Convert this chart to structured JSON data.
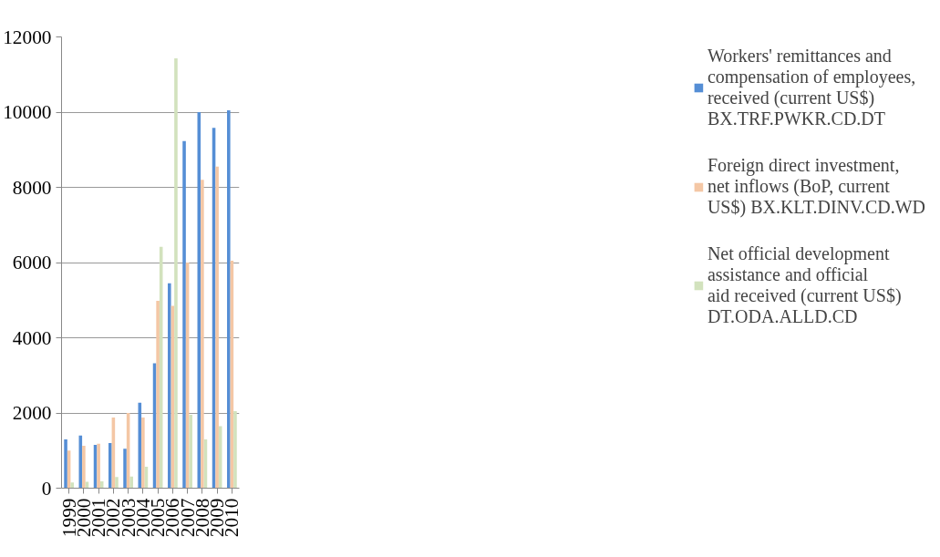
{
  "chart_data": {
    "type": "bar",
    "categories": [
      "1999",
      "2000",
      "2001",
      "2002",
      "2003",
      "2004",
      "2005",
      "2006",
      "2007",
      "2008",
      "2009",
      "2010"
    ],
    "series": [
      {
        "name": "Workers' remittances and compensation of employees, received (current US$) BX.TRF.PWKR.CD.DT",
        "color": "#558ed5",
        "values": [
          1300,
          1400,
          1150,
          1200,
          1050,
          2270,
          3320,
          5450,
          9230,
          10000,
          9580,
          10050
        ]
      },
      {
        "name": "Foreign direct investment, net inflows (BoP, current US$) BX.KLT.DINV.CD.WD",
        "color": "#f4c7a5",
        "values": [
          1000,
          1130,
          1180,
          1880,
          2000,
          1880,
          4980,
          4850,
          6000,
          8200,
          8550,
          6050
        ]
      },
      {
        "name": "Net official development assistance and official aid received (current US$) DT.ODA.ALLD.CD",
        "color": "#d2e2bd",
        "values": [
          150,
          170,
          180,
          300,
          310,
          570,
          6420,
          11430,
          1950,
          1300,
          1650,
          2050
        ]
      }
    ],
    "ylim": [
      0,
      12000
    ],
    "yticks": [
      0,
      2000,
      4000,
      6000,
      8000,
      10000,
      12000
    ],
    "grid": "y",
    "legend": "right"
  }
}
